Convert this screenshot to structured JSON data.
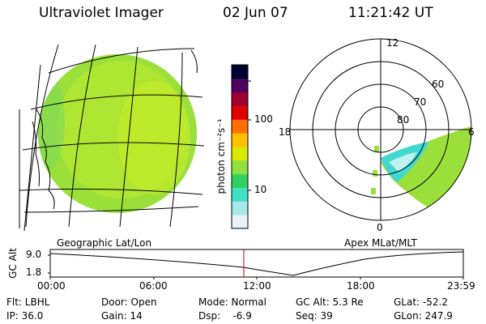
{
  "header": {
    "title": "Ultraviolet Imager",
    "date": "02 Jun 07",
    "time": "11:21:42 UT"
  },
  "colorbar": {
    "unit_label": "photon cm⁻²s⁻¹",
    "tick_labels": [
      "100",
      "10"
    ],
    "colors": [
      "#e8f0f8",
      "#a8e8e8",
      "#40e0c0",
      "#30d060",
      "#90e040",
      "#d8e800",
      "#ffc000",
      "#ff7000",
      "#e00000",
      "#a00030",
      "#500060",
      "#000030"
    ]
  },
  "left_panel": {
    "caption": "Geographic Lat/Lon"
  },
  "right_panel": {
    "caption": "Apex MLat/MLT",
    "mlt_labels": {
      "top": "12",
      "left": "18",
      "right": "6",
      "bottom": "0"
    },
    "lat_labels": [
      "60",
      "70",
      "80"
    ]
  },
  "altitude_plot": {
    "ylabel": "GC Alt",
    "y_ticks": [
      "9.0",
      "1.8"
    ],
    "x_ticks": [
      "00:00",
      "06:00",
      "12:00",
      "18:00",
      "23:59"
    ]
  },
  "info": {
    "flt": "Flt: LBHL",
    "ip": "IP: 36.0",
    "door": "Door: Open",
    "gain": "Gain: 14",
    "mode": "Mode: Normal",
    "dsp": "Dsp:    -6.9",
    "gc_alt": "GC Alt: 5.3 Re",
    "seq": "Seq: 39",
    "glat": "GLat: -52.2",
    "glon": "GLon: 247.9"
  }
}
